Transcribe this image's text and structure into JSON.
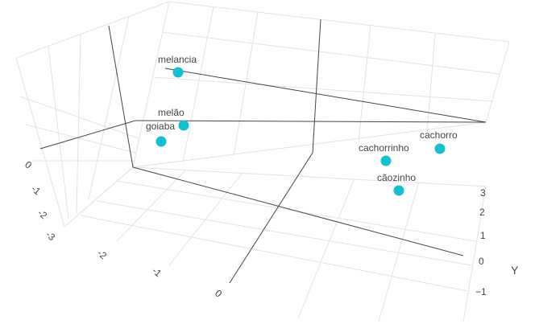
{
  "chart_data": {
    "type": "scatter",
    "projection": "3d",
    "marker_color": "#17becf",
    "axes": {
      "x": {
        "title": "",
        "ticks": [
          "-3",
          "-2",
          "-1",
          "0"
        ]
      },
      "y": {
        "title": "Y",
        "ticks": [
          "−1",
          "0",
          "1",
          "2",
          "3"
        ]
      },
      "z": {
        "title": "",
        "ticks": [
          "-3",
          "-2",
          "-1",
          "0"
        ]
      }
    },
    "points": [
      {
        "label": "melancia",
        "x": -1.5,
        "y": 1.5,
        "z": 0.0
      },
      {
        "label": "melão",
        "x": -1.6,
        "y": 0.3,
        "z": -0.8
      },
      {
        "label": "goiaba",
        "x": -1.7,
        "y": 0.2,
        "z": -1.0
      },
      {
        "label": "cachorro",
        "x": 1.3,
        "y": 2.0,
        "z": -0.5
      },
      {
        "label": "cachorrinho",
        "x": 0.9,
        "y": 1.4,
        "z": -0.6
      },
      {
        "label": "cãozinho",
        "x": 1.0,
        "y": 1.0,
        "z": -1.0
      }
    ]
  }
}
